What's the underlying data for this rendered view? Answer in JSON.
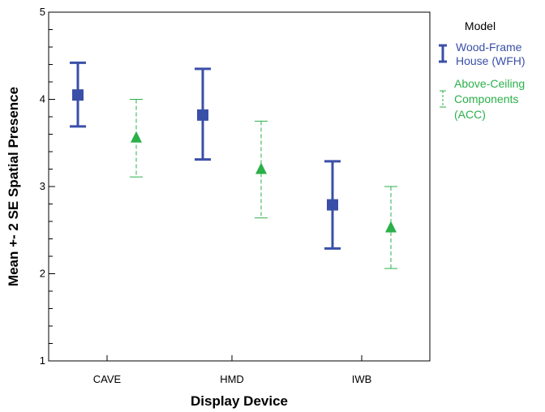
{
  "chart_data": {
    "type": "scatter",
    "subtype": "error-bar",
    "xlabel": "Display Device",
    "ylabel": "Mean +- 2 SE Spatial Presence",
    "categories": [
      "CAVE",
      "HMD",
      "IWB"
    ],
    "ylim": [
      1,
      5
    ],
    "yticks": [
      "1",
      "2",
      "3",
      "4",
      "5"
    ],
    "grid": false,
    "legend": {
      "title": "Model",
      "placement": "right",
      "entries": [
        {
          "lines": [
            "Wood-Frame",
            "House (WFH)"
          ]
        },
        {
          "lines": [
            "Above-Ceiling",
            "Components",
            "(ACC)"
          ]
        }
      ]
    },
    "series": [
      {
        "name": "Wood-Frame House (WFH)",
        "color": "#3a4fa8",
        "marker": "square",
        "line_style": "solid",
        "means": [
          4.05,
          3.82,
          2.79
        ],
        "lower": [
          3.69,
          3.31,
          2.29
        ],
        "upper": [
          4.42,
          4.35,
          3.29
        ]
      },
      {
        "name": "Above-Ceiling Components (ACC)",
        "color": "#2bb04a",
        "marker": "triangle",
        "line_style": "dashed",
        "means": [
          3.56,
          3.2,
          2.53
        ],
        "lower": [
          3.11,
          2.64,
          2.06
        ],
        "upper": [
          4.0,
          3.75,
          3.0
        ]
      }
    ]
  }
}
